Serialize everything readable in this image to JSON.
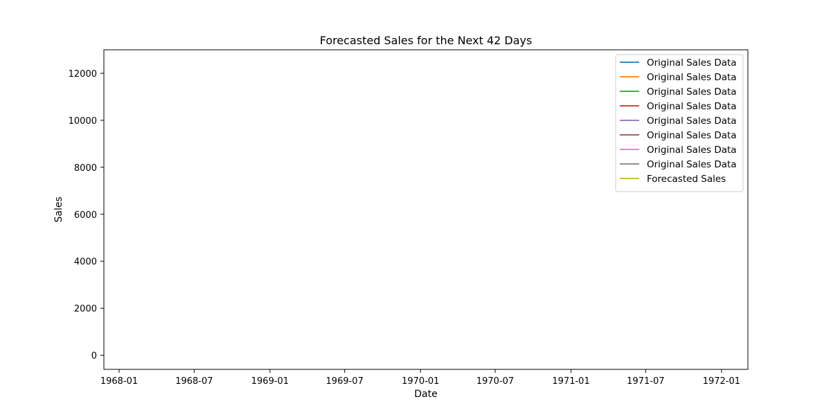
{
  "chart_data": {
    "type": "line",
    "title": "Forecasted Sales for the Next 42 Days",
    "xlabel": "Date",
    "ylabel": "Sales",
    "xlim": [
      "1967-11-25",
      "1972-03-05"
    ],
    "ylim": [
      -600,
      13000
    ],
    "x_ticks": [
      "1968-01-01",
      "1968-07-01",
      "1969-01-01",
      "1969-07-01",
      "1970-01-01",
      "1970-07-01",
      "1971-01-01",
      "1971-07-01",
      "1972-01-01"
    ],
    "x_tick_labels": [
      "1968-01",
      "1968-07",
      "1969-01",
      "1969-07",
      "1970-01",
      "1970-07",
      "1971-01",
      "1971-07",
      "1972-01"
    ],
    "y_ticks": [
      0,
      2000,
      4000,
      6000,
      8000,
      10000,
      12000
    ],
    "y_tick_labels": [
      "0",
      "2000",
      "4000",
      "6000",
      "8000",
      "10000",
      "12000"
    ],
    "grid": false,
    "legend_position": "top-right",
    "series": [
      {
        "name": "Original Sales Data",
        "color": "#1f77b4",
        "points": []
      },
      {
        "name": "Original Sales Data",
        "color": "#ff7f0e",
        "points": []
      },
      {
        "name": "Original Sales Data",
        "color": "#2ca02c",
        "points": []
      },
      {
        "name": "Original Sales Data",
        "color": "#d62728",
        "points": []
      },
      {
        "name": "Original Sales Data",
        "color": "#9467bd",
        "points": []
      },
      {
        "name": "Original Sales Data",
        "color": "#8c564b",
        "points": []
      },
      {
        "name": "Original Sales Data",
        "color": "#e377c2",
        "points": []
      },
      {
        "name": "Original Sales Data",
        "color": "#7f7f7f",
        "points": []
      },
      {
        "name": "Forecasted Sales",
        "color": "#bcbd22",
        "points": []
      }
    ]
  }
}
